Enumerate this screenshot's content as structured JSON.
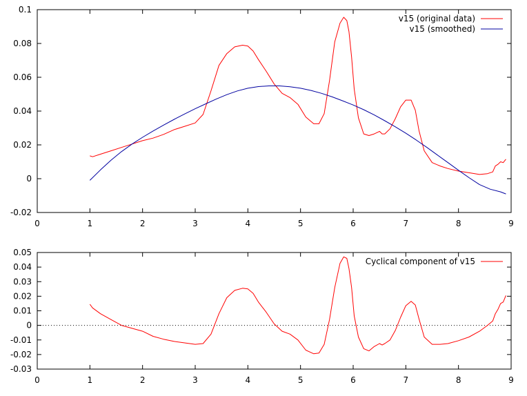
{
  "chart_data": [
    {
      "type": "line",
      "title": "",
      "xlabel": "",
      "ylabel": "",
      "xlim": [
        0,
        9
      ],
      "ylim": [
        -0.02,
        0.1
      ],
      "xticks": [
        0,
        1,
        2,
        3,
        4,
        5,
        6,
        7,
        8,
        9
      ],
      "yticks": [
        -0.02,
        0,
        0.02,
        0.04,
        0.06,
        0.08,
        0.1
      ],
      "xtick_labels": [
        "0",
        "1",
        "2",
        "3",
        "4",
        "5",
        "6",
        "7",
        "8",
        "9"
      ],
      "ytick_labels": [
        "-0.02",
        "0",
        "0.02",
        "0.04",
        "0.06",
        "0.08",
        "0.1"
      ],
      "grid": false,
      "legend_position": "top-right",
      "series": [
        {
          "name": "v15 (original data)",
          "color": "#ff0000",
          "x": [
            1.0,
            1.05,
            1.2,
            1.4,
            1.6,
            1.8,
            2.0,
            2.2,
            2.4,
            2.6,
            2.8,
            3.0,
            3.15,
            3.3,
            3.45,
            3.6,
            3.75,
            3.9,
            4.0,
            4.1,
            4.2,
            4.35,
            4.5,
            4.65,
            4.8,
            4.95,
            5.1,
            5.25,
            5.35,
            5.45,
            5.55,
            5.65,
            5.75,
            5.82,
            5.88,
            5.92,
            5.97,
            6.02,
            6.1,
            6.2,
            6.3,
            6.4,
            6.5,
            6.55,
            6.6,
            6.7,
            6.8,
            6.9,
            7.0,
            7.1,
            7.18,
            7.25,
            7.35,
            7.5,
            7.65,
            7.8,
            8.0,
            8.2,
            8.4,
            8.55,
            8.65,
            8.7,
            8.75,
            8.8,
            8.85,
            8.9
          ],
          "y": [
            0.0135,
            0.013,
            0.0145,
            0.0165,
            0.0185,
            0.0205,
            0.0225,
            0.024,
            0.0262,
            0.029,
            0.031,
            0.033,
            0.038,
            0.052,
            0.067,
            0.074,
            0.078,
            0.079,
            0.0785,
            0.0755,
            0.0705,
            0.0635,
            0.056,
            0.0505,
            0.048,
            0.044,
            0.0365,
            0.0325,
            0.0325,
            0.0385,
            0.058,
            0.081,
            0.092,
            0.0955,
            0.0935,
            0.087,
            0.072,
            0.053,
            0.036,
            0.0265,
            0.0255,
            0.0265,
            0.028,
            0.0265,
            0.0265,
            0.0295,
            0.0355,
            0.0425,
            0.0465,
            0.0465,
            0.0405,
            0.0285,
            0.0165,
            0.0095,
            0.0075,
            0.006,
            0.0045,
            0.0035,
            0.0025,
            0.003,
            0.004,
            0.0075,
            0.0085,
            0.01,
            0.0095,
            0.0115
          ]
        },
        {
          "name": "v15 (smoothed)",
          "color": "#0000a0",
          "x": [
            1.0,
            1.2,
            1.4,
            1.6,
            1.8,
            2.0,
            2.2,
            2.4,
            2.6,
            2.8,
            3.0,
            3.2,
            3.4,
            3.6,
            3.8,
            4.0,
            4.2,
            4.4,
            4.6,
            4.8,
            5.0,
            5.2,
            5.4,
            5.6,
            5.8,
            6.0,
            6.2,
            6.4,
            6.6,
            6.8,
            7.0,
            7.2,
            7.4,
            7.6,
            7.8,
            8.0,
            8.2,
            8.4,
            8.6,
            8.8,
            8.9
          ],
          "y": [
            -0.001,
            0.0052,
            0.0109,
            0.016,
            0.0205,
            0.0245,
            0.0282,
            0.0317,
            0.0351,
            0.0383,
            0.0414,
            0.0443,
            0.0471,
            0.0497,
            0.0519,
            0.0535,
            0.0545,
            0.0549,
            0.0549,
            0.0544,
            0.0535,
            0.0522,
            0.0505,
            0.0484,
            0.0461,
            0.0436,
            0.0408,
            0.0377,
            0.0343,
            0.0307,
            0.0269,
            0.0228,
            0.0185,
            0.014,
            0.0095,
            0.005,
            0.0006,
            -0.0035,
            -0.0062,
            -0.0078,
            -0.009
          ]
        }
      ]
    },
    {
      "type": "line",
      "title": "",
      "xlabel": "",
      "ylabel": "",
      "xlim": [
        0,
        9
      ],
      "ylim": [
        -0.03,
        0.05
      ],
      "xticks": [
        0,
        1,
        2,
        3,
        4,
        5,
        6,
        7,
        8,
        9
      ],
      "yticks": [
        -0.03,
        -0.02,
        -0.01,
        0,
        0.01,
        0.02,
        0.03,
        0.04,
        0.05
      ],
      "xtick_labels": [
        "0",
        "1",
        "2",
        "3",
        "4",
        "5",
        "6",
        "7",
        "8",
        "9"
      ],
      "ytick_labels": [
        "-0.03",
        "-0.02",
        "-0.01",
        "0",
        "0.01",
        "0.02",
        "0.03",
        "0.04",
        "0.05"
      ],
      "grid": false,
      "legend_position": "top-right",
      "zero_line": true,
      "series": [
        {
          "name": "Cyclical component of v15",
          "color": "#ff0000",
          "x": [
            1.0,
            1.05,
            1.2,
            1.4,
            1.6,
            1.8,
            2.0,
            2.2,
            2.4,
            2.6,
            2.8,
            3.0,
            3.15,
            3.3,
            3.45,
            3.6,
            3.75,
            3.9,
            4.0,
            4.1,
            4.2,
            4.35,
            4.5,
            4.65,
            4.8,
            4.95,
            5.1,
            5.25,
            5.35,
            5.45,
            5.55,
            5.65,
            5.75,
            5.82,
            5.88,
            5.92,
            5.97,
            6.02,
            6.1,
            6.2,
            6.3,
            6.4,
            6.5,
            6.55,
            6.6,
            6.7,
            6.8,
            6.9,
            7.0,
            7.1,
            7.18,
            7.25,
            7.35,
            7.5,
            7.65,
            7.8,
            8.0,
            8.2,
            8.4,
            8.55,
            8.65,
            8.7,
            8.75,
            8.8,
            8.85,
            8.9
          ],
          "y": [
            0.0145,
            0.012,
            0.008,
            0.004,
            0.0,
            -0.002,
            -0.004,
            -0.0075,
            -0.0095,
            -0.011,
            -0.012,
            -0.013,
            -0.0125,
            -0.006,
            0.008,
            0.019,
            0.024,
            0.0255,
            0.025,
            0.022,
            0.016,
            0.009,
            0.001,
            -0.004,
            -0.006,
            -0.01,
            -0.017,
            -0.0195,
            -0.019,
            -0.013,
            0.004,
            0.026,
            0.0425,
            0.047,
            0.046,
            0.039,
            0.026,
            0.0065,
            -0.008,
            -0.016,
            -0.0175,
            -0.0145,
            -0.0125,
            -0.0135,
            -0.0125,
            -0.01,
            -0.0035,
            0.0055,
            0.0135,
            0.0165,
            0.014,
            0.0045,
            -0.008,
            -0.013,
            -0.013,
            -0.0125,
            -0.0105,
            -0.008,
            -0.004,
            0.0,
            0.003,
            0.008,
            0.011,
            0.015,
            0.016,
            0.0205
          ]
        }
      ]
    }
  ]
}
